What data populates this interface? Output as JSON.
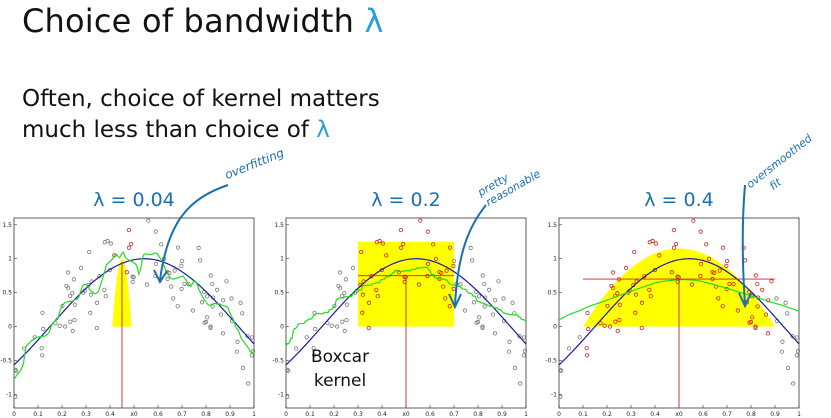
{
  "slide": {
    "title_prefix": "Choice of bandwidth ",
    "title_lambda": "λ",
    "subtitle_line1": "Often, choice of kernel matters",
    "subtitle_line2_prefix": "much less than choice of ",
    "subtitle_lambda": "λ",
    "annotation_left": "overfitting",
    "annotation_middle_1": "pretty",
    "annotation_middle_2": "reasonable",
    "annotation_right_1": "oversmoothed",
    "annotation_right_2": "fit",
    "boxcar_line1": "Boxcar",
    "boxcar_line2": "kernel",
    "colors": {
      "accent_blue": "#2a9fd6",
      "highlight": "#ffff00",
      "true_fn": "#1a1aa6",
      "fit": "#22dd22",
      "points": "#cc2222",
      "vline": "#cc2222"
    }
  },
  "chart_data": [
    {
      "type": "scatter",
      "title": "λ = 0.04",
      "bandwidth": 0.04,
      "x0": 0.45,
      "xlim": [
        0,
        1
      ],
      "ylim": [
        -1.2,
        1.6
      ],
      "x_ticks": [
        "0",
        "0.1",
        "0.2",
        "0.3",
        "0.4",
        "x0",
        "0.6",
        "0.7",
        "0.8",
        "0.9",
        "1"
      ],
      "y_ticks": [
        "-1",
        "-0.5",
        "0",
        "0.5",
        "1",
        "1.5"
      ],
      "fit_y_at_x0": 0.95
    },
    {
      "type": "scatter",
      "title": "λ = 0.2",
      "bandwidth": 0.2,
      "x0": 0.5,
      "xlim": [
        0,
        1
      ],
      "ylim": [
        -1.2,
        1.6
      ],
      "x_ticks": [
        "0",
        "0.1",
        "0.2",
        "0.3",
        "0.4",
        "x0",
        "0.6",
        "0.7",
        "0.8",
        "0.9",
        "1"
      ],
      "y_ticks": [
        "-1",
        "-0.5",
        "0",
        "0.5",
        "1",
        "1.5"
      ],
      "fit_y_at_x0": 0.75
    },
    {
      "type": "scatter",
      "title": "λ = 0.4",
      "bandwidth": 0.4,
      "x0": 0.5,
      "xlim": [
        0,
        1
      ],
      "ylim": [
        -1.2,
        1.6
      ],
      "x_ticks": [
        "0",
        "0.1",
        "0.2",
        "0.3",
        "0.4",
        "x0",
        "0.6",
        "0.7",
        "0.8",
        "0.9",
        "1"
      ],
      "y_ticks": [
        "-1",
        "-0.5",
        "0",
        "0.5",
        "1",
        "1.5"
      ],
      "fit_y_at_x0": 0.7
    }
  ]
}
